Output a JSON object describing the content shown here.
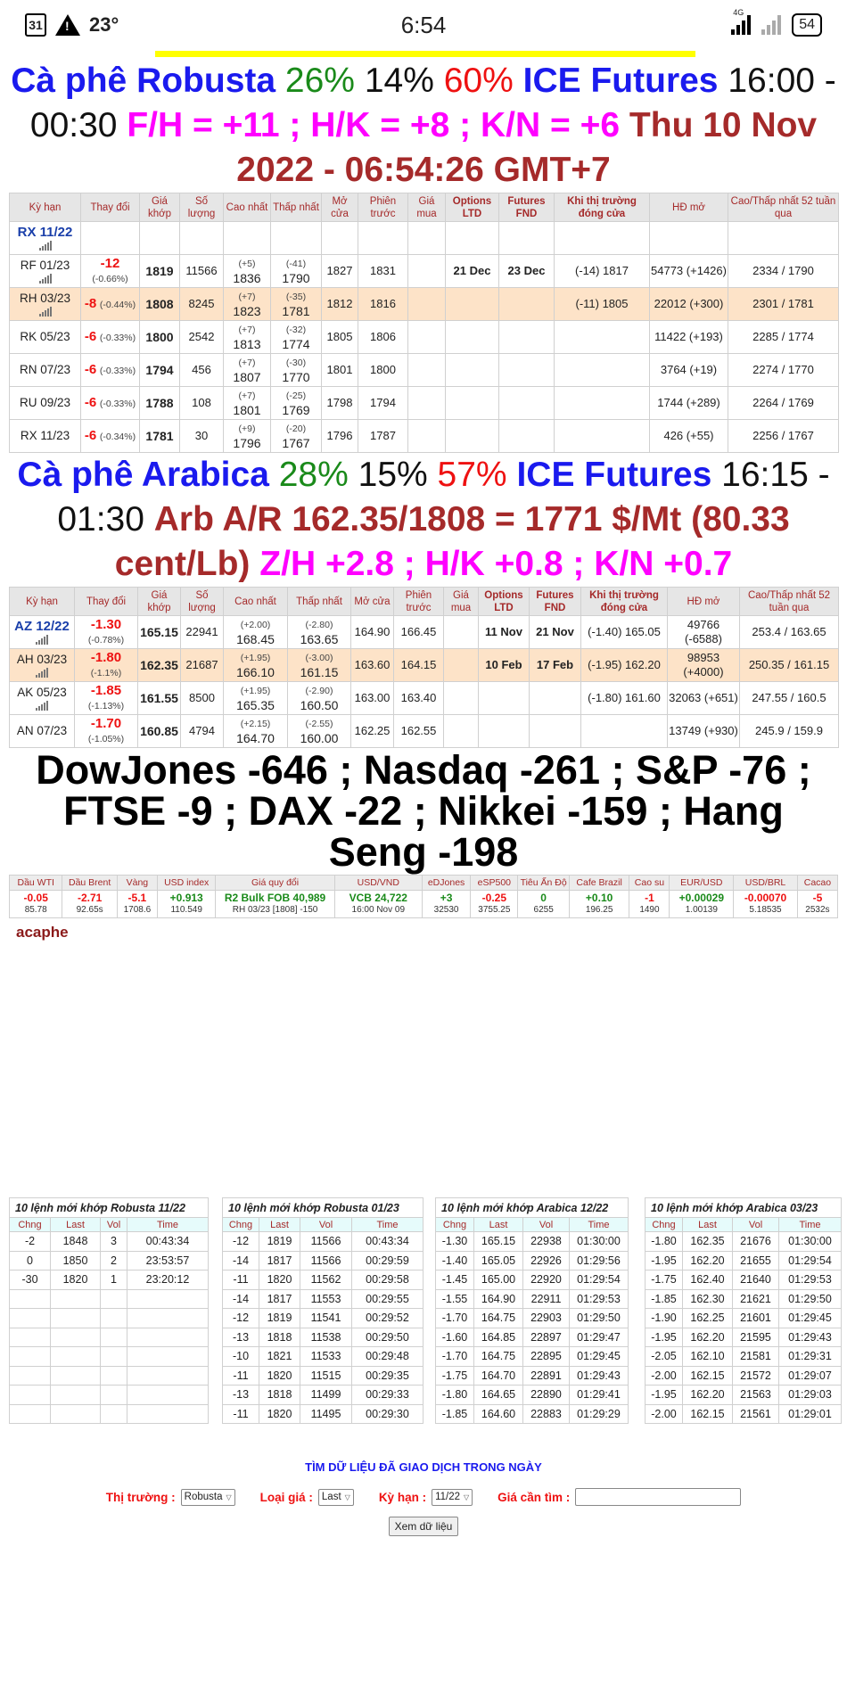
{
  "status_bar": {
    "calendar": "31",
    "temperature": "23°",
    "time": "6:54",
    "network": "4G",
    "battery": "54"
  },
  "robusta_heading": {
    "name": "Cà phê Robusta",
    "pct1": "26%",
    "pct2": "14%",
    "pct3": "60%",
    "exchange": "ICE Futures",
    "hours": "16:00 - 00:30",
    "spreads": "F/H = +11 ; H/K = +8 ; K/N = +6",
    "datetime": "Thu 10 Nov 2022 - 06:54:26 GMT+7"
  },
  "futures_headers_robusta": [
    "Kỳ hạn",
    "Thay đổi",
    "Giá khớp",
    "Số lượng",
    "Cao nhất",
    "Thấp nhất",
    "Mở cửa",
    "Phiên trước",
    "Giá mua",
    "Options LTD",
    "Futures FND",
    "Khi thị trường đóng cửa",
    "HĐ mở",
    "Cao/Thấp nhất 52 tuần qua"
  ],
  "robusta_rows": [
    {
      "sym": "RX 11/22",
      "current": true,
      "icon": true,
      "chg": "",
      "pct": "",
      "last": "",
      "vol": "",
      "high_chg": "",
      "high": "",
      "low_chg": "",
      "low": "",
      "open": "",
      "prev": "",
      "bid": "",
      "ltd": "",
      "fnd": "",
      "close": "",
      "oi": "",
      "oi_chg": "",
      "w52": ""
    },
    {
      "sym": "RF 01/23",
      "icon": true,
      "chg": "-12",
      "pct": "(-0.66%)",
      "last": "1819",
      "vol": "11566",
      "high_chg": "(+5)",
      "high": "1836",
      "low_chg": "(-41)",
      "low": "1790",
      "open": "1827",
      "prev": "1831",
      "bid": "",
      "ltd": "21 Dec",
      "fnd": "23 Dec",
      "close": "(-14) 1817",
      "oi": "54773",
      "oi_chg": "(+1426)",
      "w52": "2334 / 1790"
    },
    {
      "sym": "RH 03/23",
      "icon": true,
      "highlight": true,
      "chg": "-8",
      "pct": "(-0.44%)",
      "last": "1808",
      "vol": "8245",
      "high_chg": "(+7)",
      "high": "1823",
      "low_chg": "(-35)",
      "low": "1781",
      "open": "1812",
      "prev": "1816",
      "bid": "",
      "ltd": "",
      "fnd": "",
      "close": "(-11) 1805",
      "oi": "22012",
      "oi_chg": "(+300)",
      "w52": "2301 / 1781"
    },
    {
      "sym": "RK 05/23",
      "chg": "-6",
      "pct": "(-0.33%)",
      "last": "1800",
      "vol": "2542",
      "high_chg": "(+7)",
      "high": "1813",
      "low_chg": "(-32)",
      "low": "1774",
      "open": "1805",
      "prev": "1806",
      "bid": "",
      "ltd": "",
      "fnd": "",
      "close": "",
      "oi": "11422",
      "oi_chg": "(+193)",
      "w52": "2285 / 1774"
    },
    {
      "sym": "RN 07/23",
      "chg": "-6",
      "pct": "(-0.33%)",
      "last": "1794",
      "vol": "456",
      "high_chg": "(+7)",
      "high": "1807",
      "low_chg": "(-30)",
      "low": "1770",
      "open": "1801",
      "prev": "1800",
      "bid": "",
      "ltd": "",
      "fnd": "",
      "close": "",
      "oi": "3764",
      "oi_chg": "(+19)",
      "w52": "2274 / 1770"
    },
    {
      "sym": "RU 09/23",
      "chg": "-6",
      "pct": "(-0.33%)",
      "last": "1788",
      "vol": "108",
      "high_chg": "(+7)",
      "high": "1801",
      "low_chg": "(-25)",
      "low": "1769",
      "open": "1798",
      "prev": "1794",
      "bid": "",
      "ltd": "",
      "fnd": "",
      "close": "",
      "oi": "1744",
      "oi_chg": "(+289)",
      "w52": "2264 / 1769"
    },
    {
      "sym": "RX 11/23",
      "chg": "-6",
      "pct": "(-0.34%)",
      "last": "1781",
      "vol": "30",
      "high_chg": "(+9)",
      "high": "1796",
      "low_chg": "(-20)",
      "low": "1767",
      "open": "1796",
      "prev": "1787",
      "bid": "",
      "ltd": "",
      "fnd": "",
      "close": "",
      "oi": "426",
      "oi_chg": "(+55)",
      "w52": "2256 / 1767"
    }
  ],
  "arabica_heading": {
    "name": "Cà phê Arabica",
    "pct1": "28%",
    "pct2": "15%",
    "pct3": "57%",
    "exchange": "ICE Futures",
    "hours": "16:15 - 01:30",
    "arb": "Arb A/R 162.35/1808 = 1771 $/Mt (80.33 cent/Lb)",
    "spreads": "Z/H +2.8 ; H/K +0.8 ; K/N +0.7"
  },
  "futures_headers_arabica": [
    "Kỳ hạn",
    "Thay đổi",
    "Giá khớp",
    "Số lượng",
    "Cao nhất",
    "Thấp nhất",
    "Mở cửa",
    "Phiên trước",
    "Giá mua",
    "Options LTD",
    "Futures FND",
    "Khi thị trường đóng cửa",
    "HĐ mở",
    "Cao/Thấp nhất 52 tuần qua"
  ],
  "arabica_rows": [
    {
      "sym": "AZ 12/22",
      "current": true,
      "icon": true,
      "chg": "-1.30",
      "pct": "(-0.78%)",
      "last": "165.15",
      "vol": "22941",
      "high_chg": "(+2.00)",
      "high": "168.45",
      "low_chg": "(-2.80)",
      "low": "163.65",
      "open": "164.90",
      "prev": "166.45",
      "bid": "",
      "ltd": "11 Nov",
      "fnd": "21 Nov",
      "close": "(-1.40) 165.05",
      "oi": "49766",
      "oi_chg": "(-6588)",
      "w52": "253.4 / 163.65"
    },
    {
      "sym": "AH 03/23",
      "icon": true,
      "highlight": true,
      "chg": "-1.80",
      "pct": "(-1.1%)",
      "last": "162.35",
      "vol": "21687",
      "high_chg": "(+1.95)",
      "high": "166.10",
      "low_chg": "(-3.00)",
      "low": "161.15",
      "open": "163.60",
      "prev": "164.15",
      "bid": "",
      "ltd": "10 Feb",
      "fnd": "17 Feb",
      "close": "(-1.95) 162.20",
      "oi": "98953",
      "oi_chg": "(+4000)",
      "w52": "250.35 / 161.15"
    },
    {
      "sym": "AK 05/23",
      "icon": true,
      "chg": "-1.85",
      "pct": "(-1.13%)",
      "last": "161.55",
      "vol": "8500",
      "high_chg": "(+1.95)",
      "high": "165.35",
      "low_chg": "(-2.90)",
      "low": "160.50",
      "open": "163.00",
      "prev": "163.40",
      "bid": "",
      "ltd": "",
      "fnd": "",
      "close": "(-1.80) 161.60",
      "oi": "32063",
      "oi_chg": "(+651)",
      "w52": "247.55 / 160.5"
    },
    {
      "sym": "AN 07/23",
      "chg": "-1.70",
      "pct": "(-1.05%)",
      "last": "160.85",
      "vol": "4794",
      "high_chg": "(+2.15)",
      "high": "164.70",
      "low_chg": "(-2.55)",
      "low": "160.00",
      "open": "162.25",
      "prev": "162.55",
      "bid": "",
      "ltd": "",
      "fnd": "",
      "close": "",
      "oi": "13749",
      "oi_chg": "(+930)",
      "w52": "245.9 / 159.9"
    }
  ],
  "indices_text": "DowJones -646 ; Nasdaq -261 ; S&P -76 ; FTSE -9 ; DAX -22 ; Nikkei -159 ; Hang Seng -198",
  "markets": [
    {
      "label": "Dầu WTI",
      "chg": "-0.05",
      "value": "85.78",
      "dir": "down"
    },
    {
      "label": "Dầu Brent",
      "chg": "-2.71",
      "value": "92.65s",
      "dir": "down"
    },
    {
      "label": "Vàng",
      "chg": "-5.1",
      "value": "1708.6",
      "dir": "down"
    },
    {
      "label": "USD index",
      "chg": "+0.913",
      "value": "110.549",
      "dir": "up"
    },
    {
      "label": "Giá quy đổi",
      "chg": "R2 Bulk FOB 40,989",
      "value": "RH 03/23 [1808] -150",
      "dir": "up"
    },
    {
      "label": "USD/VND",
      "chg": "VCB 24,722",
      "value": "16:00 Nov 09",
      "dir": "up"
    },
    {
      "label": "eDJones",
      "chg": "+3",
      "value": "32530",
      "dir": "up"
    },
    {
      "label": "eSP500",
      "chg": "-0.25",
      "value": "3755.25",
      "dir": "down"
    },
    {
      "label": "Tiêu Ấn Độ",
      "chg": "0",
      "value": "6255",
      "dir": "up"
    },
    {
      "label": "Cafe Brazil",
      "chg": "+0.10",
      "value": "196.25",
      "dir": "up"
    },
    {
      "label": "Cao su",
      "chg": "-1",
      "value": "1490",
      "dir": "down"
    },
    {
      "label": "EUR/USD",
      "chg": "+0.00029",
      "value": "1.00139",
      "dir": "up"
    },
    {
      "label": "USD/BRL",
      "chg": "-0.00070",
      "value": "5.18535",
      "dir": "down"
    },
    {
      "label": "Cacao",
      "chg": "-5",
      "value": "2532s",
      "dir": "down"
    }
  ],
  "brand": "acaphe",
  "trade_tables": [
    {
      "title": "10 lệnh mới khớp Robusta 11/22",
      "headers": [
        "Chng",
        "Last",
        "Vol",
        "Time"
      ],
      "rows": [
        [
          "-2",
          "1848",
          "3",
          "00:43:34"
        ],
        [
          "0",
          "1850",
          "2",
          "23:53:57"
        ],
        [
          "-30",
          "1820",
          "1",
          "23:20:12"
        ],
        [
          "",
          "",
          "",
          ""
        ],
        [
          "",
          "",
          "",
          ""
        ],
        [
          "",
          "",
          "",
          ""
        ],
        [
          "",
          "",
          "",
          ""
        ],
        [
          "",
          "",
          "",
          ""
        ],
        [
          "",
          "",
          "",
          ""
        ],
        [
          "",
          "",
          "",
          ""
        ]
      ]
    },
    {
      "title": "10 lệnh mới khớp Robusta 01/23",
      "headers": [
        "Chng",
        "Last",
        "Vol",
        "Time"
      ],
      "rows": [
        [
          "-12",
          "1819",
          "11566",
          "00:43:34"
        ],
        [
          "-14",
          "1817",
          "11566",
          "00:29:59"
        ],
        [
          "-11",
          "1820",
          "11562",
          "00:29:58"
        ],
        [
          "-14",
          "1817",
          "11553",
          "00:29:55"
        ],
        [
          "-12",
          "1819",
          "11541",
          "00:29:52"
        ],
        [
          "-13",
          "1818",
          "11538",
          "00:29:50"
        ],
        [
          "-10",
          "1821",
          "11533",
          "00:29:48"
        ],
        [
          "-11",
          "1820",
          "11515",
          "00:29:35"
        ],
        [
          "-13",
          "1818",
          "11499",
          "00:29:33"
        ],
        [
          "-11",
          "1820",
          "11495",
          "00:29:30"
        ]
      ]
    },
    {
      "title": "10 lệnh mới khớp Arabica 12/22",
      "headers": [
        "Chng",
        "Last",
        "Vol",
        "Time"
      ],
      "rows": [
        [
          "-1.30",
          "165.15",
          "22938",
          "01:30:00"
        ],
        [
          "-1.40",
          "165.05",
          "22926",
          "01:29:56"
        ],
        [
          "-1.45",
          "165.00",
          "22920",
          "01:29:54"
        ],
        [
          "-1.55",
          "164.90",
          "22911",
          "01:29:53"
        ],
        [
          "-1.70",
          "164.75",
          "22903",
          "01:29:50"
        ],
        [
          "-1.60",
          "164.85",
          "22897",
          "01:29:47"
        ],
        [
          "-1.70",
          "164.75",
          "22895",
          "01:29:45"
        ],
        [
          "-1.75",
          "164.70",
          "22891",
          "01:29:43"
        ],
        [
          "-1.80",
          "164.65",
          "22890",
          "01:29:41"
        ],
        [
          "-1.85",
          "164.60",
          "22883",
          "01:29:29"
        ]
      ]
    },
    {
      "title": "10 lệnh mới khớp Arabica 03/23",
      "headers": [
        "Chng",
        "Last",
        "Vol",
        "Time"
      ],
      "rows": [
        [
          "-1.80",
          "162.35",
          "21676",
          "01:30:00"
        ],
        [
          "-1.95",
          "162.20",
          "21655",
          "01:29:54"
        ],
        [
          "-1.75",
          "162.40",
          "21640",
          "01:29:53"
        ],
        [
          "-1.85",
          "162.30",
          "21621",
          "01:29:50"
        ],
        [
          "-1.90",
          "162.25",
          "21601",
          "01:29:45"
        ],
        [
          "-1.95",
          "162.20",
          "21595",
          "01:29:43"
        ],
        [
          "-2.05",
          "162.10",
          "21581",
          "01:29:31"
        ],
        [
          "-2.00",
          "162.15",
          "21572",
          "01:29:07"
        ],
        [
          "-1.95",
          "162.20",
          "21563",
          "01:29:03"
        ],
        [
          "-2.00",
          "162.15",
          "21561",
          "01:29:01"
        ]
      ]
    }
  ],
  "search": {
    "title": "TÌM DỮ LIỆU ĐÃ GIAO DỊCH TRONG NGÀY",
    "market_label": "Thị trường :",
    "market_value": "Robusta",
    "price_type_label": "Loại giá :",
    "price_type_value": "Last",
    "term_label": "Kỳ hạn :",
    "term_value": "11/22",
    "price_label": "Giá cần tìm :",
    "price_value": "",
    "submit_label": "Xem dữ liệu"
  },
  "colors": {
    "title_blue": "#1a1aee",
    "up_green": "#1a8a1a",
    "down_red": "#ee1111",
    "brown": "#a52a2a",
    "magenta": "#ff00ff",
    "highlight_row": "#fde3c8"
  }
}
